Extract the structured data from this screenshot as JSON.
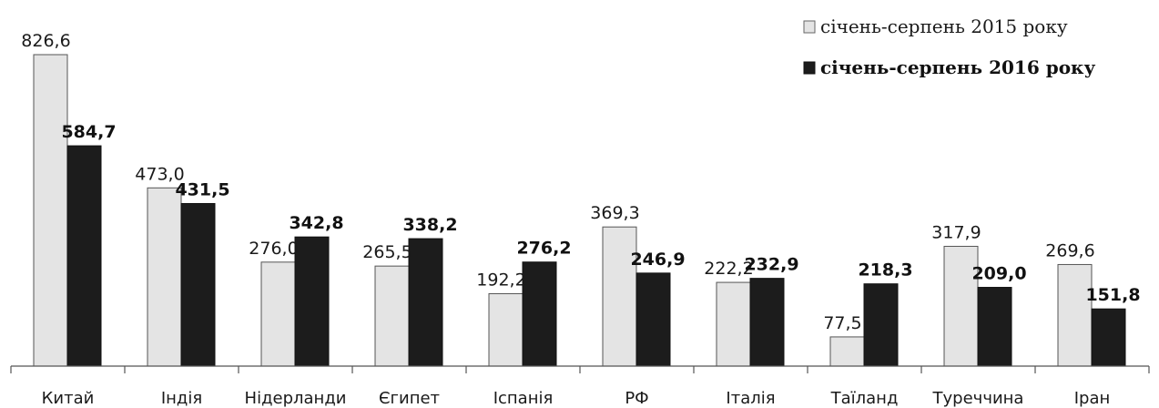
{
  "chart_data": {
    "type": "bar",
    "title": "",
    "xlabel": "",
    "ylabel": "",
    "ylim": [
      0,
      850
    ],
    "grid": false,
    "legend_position": "top-right",
    "categories": [
      "Китай",
      "Індія",
      "Нідерланди",
      "Єгипет",
      "Іспанія",
      "РФ",
      "Італія",
      "Таїланд",
      "Туреччина",
      "Іран"
    ],
    "series": [
      {
        "name": "січень-серпень 2015 року",
        "color": "#e4e4e4",
        "values": [
          826.6,
          473.0,
          276.0,
          265.5,
          192.2,
          369.3,
          222.2,
          77.5,
          317.9,
          269.6
        ],
        "labels": [
          "826,6",
          "473,0",
          "276,0",
          "265,5",
          "192,2",
          "369,3",
          "222,2",
          "77,5",
          "317,9",
          "269,6"
        ]
      },
      {
        "name": "січень-серпень 2016 року",
        "color": "#1c1c1c",
        "values": [
          584.7,
          431.5,
          342.8,
          338.2,
          276.2,
          246.9,
          232.9,
          218.3,
          209.0,
          151.8
        ],
        "labels": [
          "584,7",
          "431,5",
          "342,8",
          "338,2",
          "276,2",
          "246,9",
          "232,9",
          "218,3",
          "209,0",
          "151,8"
        ]
      }
    ]
  }
}
